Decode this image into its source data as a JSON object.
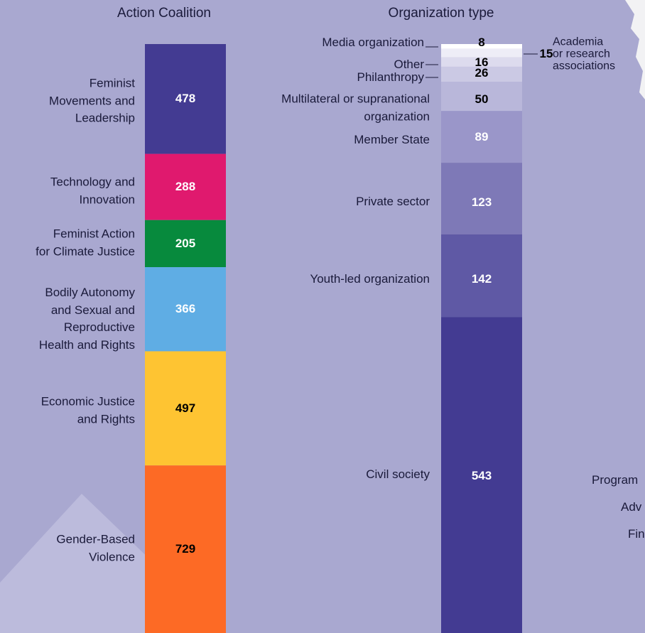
{
  "chart_data": [
    {
      "type": "stacked_bar",
      "title": "Action Coalition",
      "categories": [
        "Feminist\nMovements and\nLeadership",
        "Technology and\nInnovation",
        "Feminist Action\nfor Climate Justice",
        "Bodily Autonomy\nand Sexual and\nReproductive\nHealth and Rights",
        "Economic Justice\nand Rights",
        "Gender-Based\nViolence"
      ],
      "values": [
        478,
        288,
        205,
        366,
        497,
        729
      ],
      "colors": [
        "#433b92",
        "#e0196e",
        "#078a3d",
        "#5fade4",
        "#fec432",
        "#fd6a25"
      ],
      "label_colors": [
        "#ffffff",
        "#ffffff",
        "#ffffff",
        "#ffffff",
        "#000000",
        "#000000"
      ]
    },
    {
      "type": "stacked_bar",
      "title": "Organization type",
      "categories": [
        "Media organization",
        "Academia\nor research\nassociations",
        "Other",
        "Philanthropy",
        "Multilateral or supranational\norganization",
        "Member State",
        "Private sector",
        "Youth-led organization",
        "Civil society"
      ],
      "values": [
        8,
        15,
        16,
        26,
        50,
        89,
        123,
        142,
        543
      ],
      "colors": [
        "#ffffff",
        "#eeedf7",
        "#dddbee",
        "#cbc9e4",
        "#b9b7da",
        "#9a96c9",
        "#7e79b7",
        "#5f59a5",
        "#433b92"
      ],
      "label_colors": [
        "#000000",
        "#000000",
        "#000000",
        "#000000",
        "#000000",
        "#ffffff",
        "#ffffff",
        "#ffffff",
        "#ffffff"
      ]
    }
  ],
  "fragments": [
    "Program",
    "Adv",
    "Fin"
  ]
}
